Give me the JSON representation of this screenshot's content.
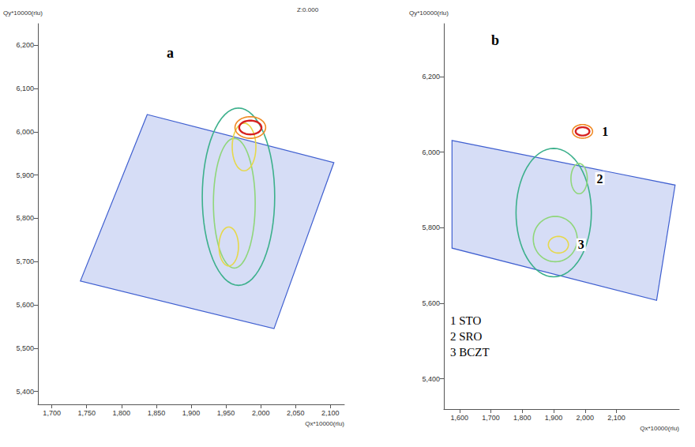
{
  "chart_data": [
    {
      "type": "contour",
      "title": "a",
      "x_label": "Qx*10000(rlu)",
      "y_label": "Qy*10000(rlu)",
      "xlim": [
        1680,
        2120
      ],
      "ylim": [
        5370,
        6250
      ],
      "xticks": [
        1700,
        1750,
        1800,
        1850,
        1900,
        1950,
        2000,
        2050,
        2100
      ],
      "yticks": [
        5400,
        5500,
        5600,
        5700,
        5800,
        5900,
        6000,
        6100,
        6200
      ],
      "grid": false,
      "annotations": [
        "Z:0.000"
      ],
      "scan_area": [
        [
          1837,
          6040
        ],
        [
          2105,
          5929
        ],
        [
          2019,
          5545
        ],
        [
          1741,
          5655
        ]
      ],
      "scan_color": "#3f5fd0",
      "contours": [
        {
          "x": 1968,
          "y": 5850,
          "rx": 52,
          "ry": 205,
          "color": "#3cb08c"
        },
        {
          "x": 1962,
          "y": 5835,
          "rx": 30,
          "ry": 150,
          "color": "#8fd67a"
        },
        {
          "x": 1954,
          "y": 5735,
          "rx": 14,
          "ry": 45,
          "color": "#e6d84a"
        },
        {
          "x": 1976,
          "y": 5965,
          "rx": 17,
          "ry": 55,
          "color": "#e6d84a"
        },
        {
          "x": 1985,
          "y": 6010,
          "rx": 22,
          "ry": 25,
          "color": "#f08a24"
        },
        {
          "x": 1985,
          "y": 6010,
          "rx": 16,
          "ry": 16,
          "color": "#d62020"
        }
      ]
    },
    {
      "type": "contour",
      "title": "b",
      "x_label": "Qx*10000(rlu)",
      "y_label": "Qy*10000(rlu)",
      "xlim": [
        1550,
        2300
      ],
      "ylim": [
        5320,
        6340
      ],
      "xticks": [
        1600,
        1700,
        1800,
        1900,
        2000,
        2100
      ],
      "yticks": [
        5400,
        5600,
        5800,
        6000,
        6200
      ],
      "grid": false,
      "annotations": [
        "1 STO",
        "2 SRO",
        "3 BCZT"
      ],
      "scan_area": [
        [
          1576,
          6031
        ],
        [
          2287,
          5913
        ],
        [
          2228,
          5608
        ],
        [
          1576,
          5746
        ]
      ],
      "scan_color": "#3f5fd0",
      "contours": [
        {
          "x": 1900,
          "y": 5840,
          "rx": 120,
          "ry": 170,
          "color": "#3cb08c"
        },
        {
          "x": 1905,
          "y": 5770,
          "rx": 70,
          "ry": 60,
          "color": "#8fd67a"
        },
        {
          "x": 1915,
          "y": 5755,
          "rx": 32,
          "ry": 22,
          "color": "#e6d84a",
          "label": "3"
        },
        {
          "x": 1981,
          "y": 5930,
          "rx": 26,
          "ry": 40,
          "color": "#8fd67a",
          "label": "2"
        },
        {
          "x": 1992,
          "y": 6055,
          "rx": 32,
          "ry": 18,
          "color": "#f08a24",
          "label": "1"
        },
        {
          "x": 1992,
          "y": 6055,
          "rx": 22,
          "ry": 11,
          "color": "#d62020"
        }
      ]
    }
  ]
}
